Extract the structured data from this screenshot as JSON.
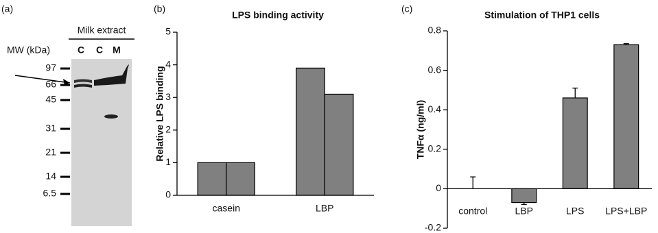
{
  "gel": {
    "panel": "(a)",
    "header": "Milk extract",
    "mw_label": "MW (kDa)",
    "lanes": [
      "C",
      "C",
      "M"
    ],
    "markers": [
      97,
      66,
      45,
      31,
      21,
      14,
      6.5
    ]
  },
  "chart_data": [
    {
      "type": "bar",
      "panel": "(b)",
      "title": "LPS binding activity",
      "y_label": "Relative LPS binding",
      "categories": [
        "casein",
        "LBP"
      ],
      "series": [
        {
          "color": "#808080",
          "values": [
            1,
            3.9
          ]
        },
        {
          "color": "#808080",
          "values": [
            1,
            3.1
          ]
        }
      ],
      "ylim": [
        0,
        5
      ],
      "yticks": [
        0,
        1,
        2,
        3,
        4,
        5
      ]
    },
    {
      "type": "errorbar",
      "panel": "(c)",
      "title": "Stimulation of THP1 cells",
      "y_label": "TNFα (ng/ml)",
      "categories": [
        "control",
        "LBP",
        "LPS",
        "LPS+LBP"
      ],
      "values": [
        0,
        -0.07,
        0.46,
        0.73
      ],
      "errors": [
        0.06,
        0.01,
        0.05,
        0.005
      ],
      "color": "#808080",
      "ylim": [
        -0.2,
        0.8
      ],
      "yticks": [
        -0.2,
        0,
        0.2,
        0.4,
        0.6,
        0.8
      ]
    }
  ]
}
